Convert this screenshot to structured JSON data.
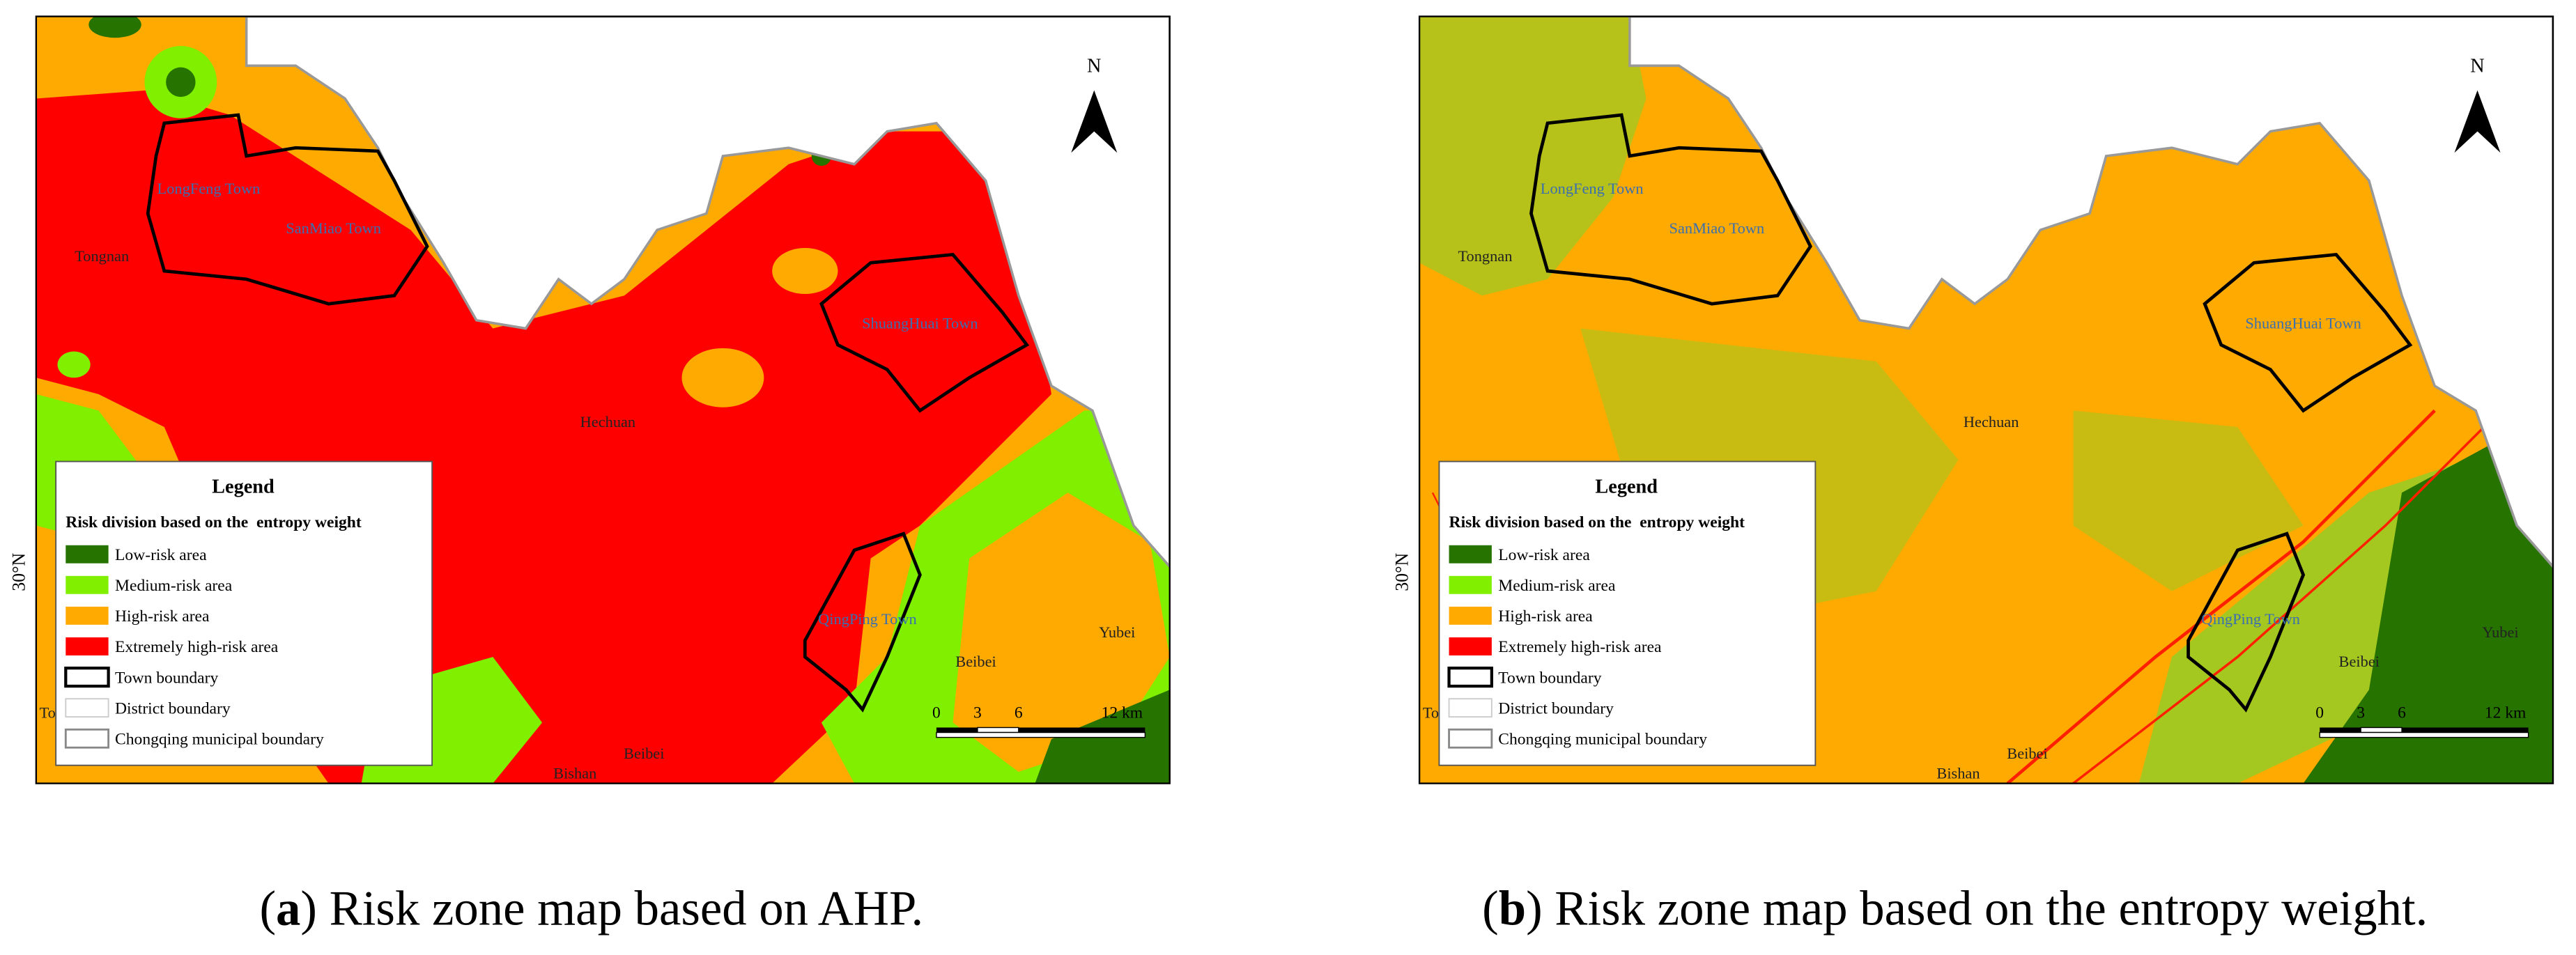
{
  "panels": [
    {
      "caption": [
        "(",
        "a",
        ") Risk zone map based on AHP."
      ],
      "north": "N",
      "latitude": "30°N",
      "places": [
        "LongFeng Town",
        "SanMiao Town",
        "Tongnan",
        "ShuangHuai Town",
        "Hechuan",
        "QingPing Town",
        "Beibei",
        "Yubei",
        "Bishan",
        "Beibei",
        "To"
      ],
      "legend": {
        "title": "Legend",
        "subtitle": "Risk division based on the  entropy weight",
        "items": [
          {
            "label": "Low-risk area",
            "color": "#267300"
          },
          {
            "label": "Medium-risk area",
            "color": "#80f000"
          },
          {
            "label": "High-risk area",
            "color": "#ffaa00"
          },
          {
            "label": "Extremely high-risk area",
            "color": "#ff0000"
          },
          {
            "label": "Town boundary"
          },
          {
            "label": "District boundary"
          },
          {
            "label": "Chongqing municipal boundary"
          }
        ]
      },
      "scale": [
        "0",
        "3",
        "6",
        "12 km"
      ]
    },
    {
      "caption": [
        "(",
        "b",
        ") Risk zone map based on the entropy weight."
      ],
      "north": "N",
      "latitude": "30°N",
      "places": [
        "LongFeng Town",
        "SanMiao Town",
        "Tongnan",
        "ShuangHuai Town",
        "Hechuan",
        "QingPing Town",
        "Beibei",
        "Yubei",
        "Bishan",
        "Beibei",
        "To"
      ],
      "legend": {
        "title": "Legend",
        "subtitle": "Risk division based on the  entropy weight",
        "items": [
          {
            "label": "Low-risk area",
            "color": "#267300"
          },
          {
            "label": "Medium-risk area",
            "color": "#80f000"
          },
          {
            "label": "High-risk area",
            "color": "#ffaa00"
          },
          {
            "label": "Extremely high-risk area",
            "color": "#ff0000"
          },
          {
            "label": "Town boundary"
          },
          {
            "label": "District boundary"
          },
          {
            "label": "Chongqing municipal boundary"
          }
        ]
      },
      "scale": [
        "0",
        "3",
        "6",
        "12 km"
      ]
    }
  ]
}
